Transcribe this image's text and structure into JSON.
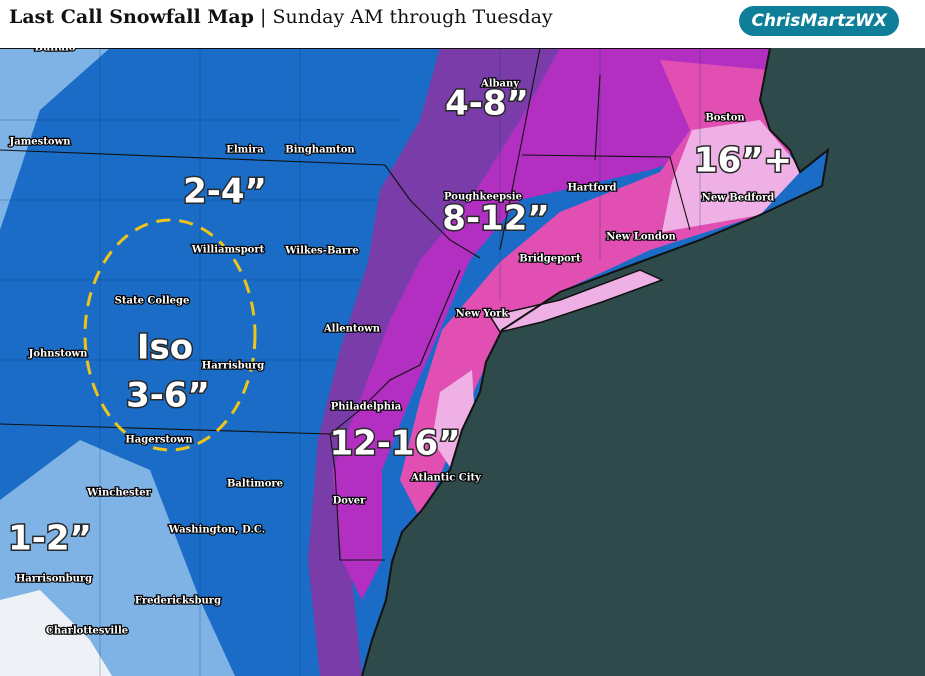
{
  "header": {
    "title": "Last Call Snowfall Map",
    "separator": "|",
    "subtitle": "Sunday AM through Tuesday",
    "logo": "ChrisMartzWX"
  },
  "cities": [
    {
      "label": "Buffalo"
    },
    {
      "label": "Jamestown"
    },
    {
      "label": "Elmira"
    },
    {
      "label": "Binghamton"
    },
    {
      "label": "Albany"
    },
    {
      "label": "Boston"
    },
    {
      "label": "Hartford"
    },
    {
      "label": "Poughkeepsie"
    },
    {
      "label": "New Bedford"
    },
    {
      "label": "New London"
    },
    {
      "label": "Williamsport"
    },
    {
      "label": "Wilkes-Barre"
    },
    {
      "label": "Bridgeport"
    },
    {
      "label": "State College"
    },
    {
      "label": "New York"
    },
    {
      "label": "Allentown"
    },
    {
      "label": "Johnstown"
    },
    {
      "label": "Harrisburg"
    },
    {
      "label": "Philadelphia"
    },
    {
      "label": "Hagerstown"
    },
    {
      "label": "Atlantic City"
    },
    {
      "label": "Baltimore"
    },
    {
      "label": "Winchester"
    },
    {
      "label": "Dover"
    },
    {
      "label": "Washington, D.C."
    },
    {
      "label": "Harrisonburg"
    },
    {
      "label": "Fredericksburg"
    },
    {
      "label": "Charlottesville"
    }
  ],
  "amounts": [
    {
      "label": "2-4”"
    },
    {
      "label": "4-8”"
    },
    {
      "label": "8-12”"
    },
    {
      "label": "16”+"
    },
    {
      "label": "Iso"
    },
    {
      "label": "3-6”"
    },
    {
      "label": "12-16”"
    },
    {
      "label": "1-2”"
    }
  ]
}
